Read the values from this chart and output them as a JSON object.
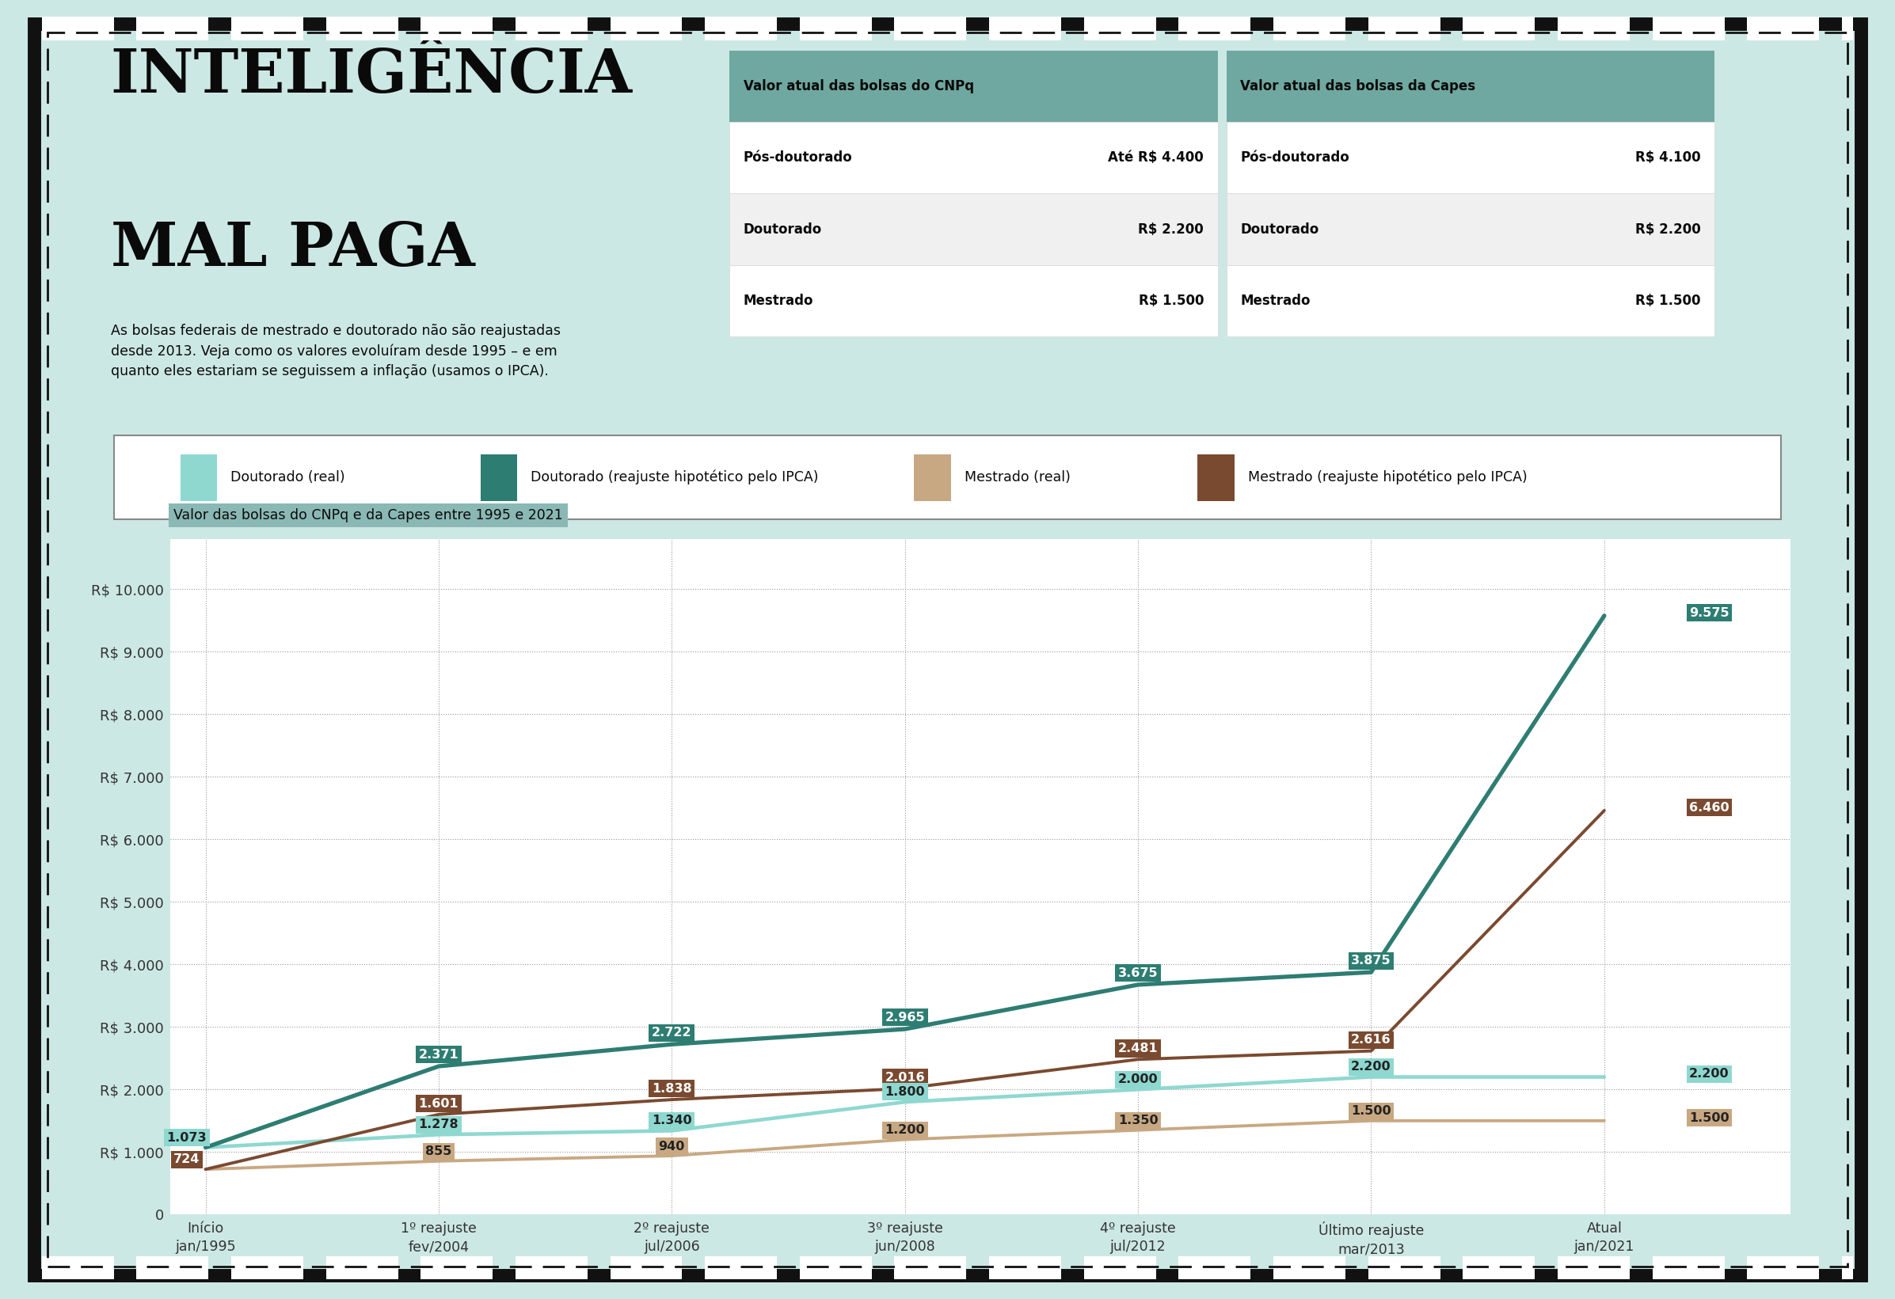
{
  "bg_color": "#cce8e4",
  "border_color": "#1a1a1a",
  "title_line1": "INTELIGÊNCIA",
  "title_line2": "MAL PAGA",
  "subtitle": "As bolsas federais de mestrado e doutorado não são reajustadas\ndesde 2013. Veja como os valores evoluíram desde 1995 – e em\nquanto eles estariam se seguissem a inflação (usamos o IPCA).",
  "table_header_color": "#6fa8a0",
  "cnpq_table": {
    "header": "Valor atual das bolsas do CNPq",
    "rows": [
      [
        "Pós-doutorado",
        "Até R$ 4.400"
      ],
      [
        "Doutorado",
        "R$ 2.200"
      ],
      [
        "Mestrado",
        "R$ 1.500"
      ]
    ]
  },
  "capes_table": {
    "header": "Valor atual das bolsas da Capes",
    "rows": [
      [
        "Pós-doutorado",
        "R$ 4.100"
      ],
      [
        "Doutorado",
        "R$ 2.200"
      ],
      [
        "Mestrado",
        "R$ 1.500"
      ]
    ]
  },
  "legend_items": [
    {
      "label": "Doutorado (real)",
      "color": "#8ed8d0"
    },
    {
      "label": "Doutorado (reajuste hipotético pelo IPCA)",
      "color": "#2e7d72"
    },
    {
      "label": "Mestrado (real)",
      "color": "#c8a882"
    },
    {
      "label": "Mestrado (reajuste hipotético pelo IPCA)",
      "color": "#7a4a30"
    }
  ],
  "chart_title": "Valor das bolsas do CNPq e da Capes entre 1995 e 2021",
  "chart_title_bg": "#8ab8b4",
  "x_labels": [
    "Início\njan/1995",
    "1º reajuste\nfev/2004",
    "2º reajuste\njul/2006",
    "3º reajuste\njun/2008",
    "4º reajuste\njul/2012",
    "Último reajuste\nmar/2013",
    "Atual\njan/2021"
  ],
  "doutorado_real": [
    1073,
    1278,
    1340,
    1800,
    2000,
    2200,
    2200
  ],
  "doutorado_ipca": [
    1073,
    2371,
    2722,
    2965,
    3675,
    3875,
    9575
  ],
  "mestrado_real": [
    724,
    855,
    940,
    1200,
    1350,
    1500,
    1500
  ],
  "mestrado_ipca": [
    724,
    1601,
    1838,
    2016,
    2481,
    2616,
    6460
  ],
  "doutorado_real_color": "#8ed8d0",
  "doutorado_ipca_color": "#2e7d72",
  "mestrado_real_color": "#c8a882",
  "mestrado_ipca_color": "#7a4a30",
  "y_ticks": [
    0,
    1000,
    2000,
    3000,
    4000,
    5000,
    6000,
    7000,
    8000,
    9000,
    10000
  ],
  "y_labels": [
    "0",
    "R$ 1.000",
    "R$ 2.000",
    "R$ 3.000",
    "R$ 4.000",
    "R$ 5.000",
    "R$ 6.000",
    "R$ 7.000",
    "R$ 8.000",
    "R$ 9.000",
    "R$ 10.000"
  ]
}
